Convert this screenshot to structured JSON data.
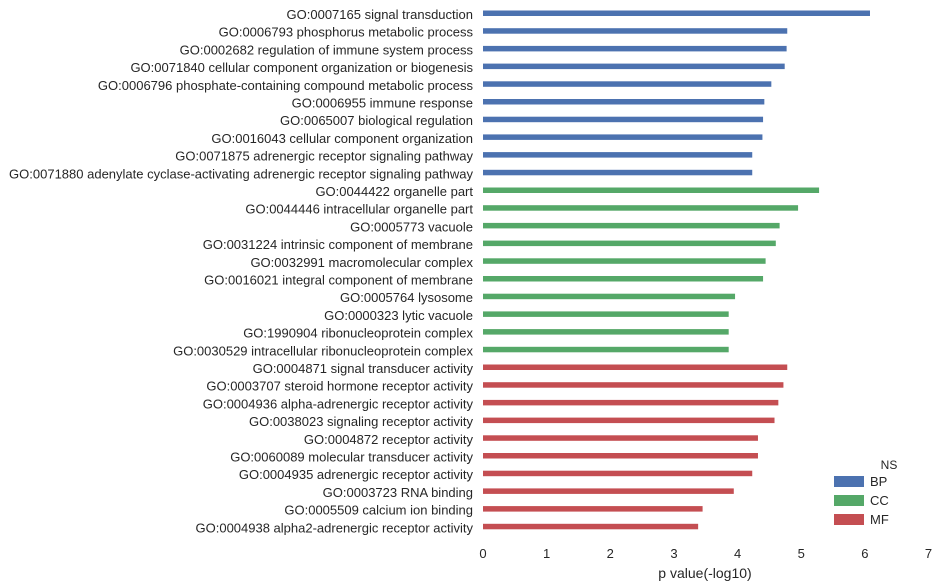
{
  "chart_data": {
    "type": "bar",
    "orientation": "horizontal",
    "grid": false,
    "legend_placement": "bottom-right",
    "xlabel": "p value(-log10)",
    "xlim": [
      0,
      7
    ],
    "xticks": [
      "0",
      "1",
      "2",
      "3",
      "4",
      "5",
      "6",
      "7"
    ],
    "legend": {
      "title": "NS",
      "entries": [
        {
          "name": "BP",
          "color": "#4c72b0"
        },
        {
          "name": "CC",
          "color": "#55a868"
        },
        {
          "name": "MF",
          "color": "#c44e52"
        }
      ]
    },
    "bars": [
      {
        "label": "GO:0007165 signal transduction",
        "value": 6.08,
        "group": "BP"
      },
      {
        "label": "GO:0006793 phosphorus metabolic process",
        "value": 4.78,
        "group": "BP"
      },
      {
        "label": "GO:0002682 regulation of immune system process",
        "value": 4.77,
        "group": "BP"
      },
      {
        "label": "GO:0071840 cellular component organization or biogenesis",
        "value": 4.74,
        "group": "BP"
      },
      {
        "label": "GO:0006796 phosphate-containing compound metabolic process",
        "value": 4.53,
        "group": "BP"
      },
      {
        "label": "GO:0006955 immune response",
        "value": 4.42,
        "group": "BP"
      },
      {
        "label": "GO:0065007 biological regulation",
        "value": 4.4,
        "group": "BP"
      },
      {
        "label": "GO:0016043 cellular component organization",
        "value": 4.39,
        "group": "BP"
      },
      {
        "label": "GO:0071875 adrenergic receptor signaling pathway",
        "value": 4.23,
        "group": "BP"
      },
      {
        "label": "GO:0071880 adenylate cyclase-activating adrenergic receptor signaling pathway",
        "value": 4.23,
        "group": "BP"
      },
      {
        "label": "GO:0044422 organelle part",
        "value": 5.28,
        "group": "CC"
      },
      {
        "label": "GO:0044446 intracellular organelle part",
        "value": 4.95,
        "group": "CC"
      },
      {
        "label": "GO:0005773 vacuole",
        "value": 4.66,
        "group": "CC"
      },
      {
        "label": "GO:0031224 intrinsic component of membrane",
        "value": 4.6,
        "group": "CC"
      },
      {
        "label": "GO:0032991 macromolecular complex",
        "value": 4.44,
        "group": "CC"
      },
      {
        "label": "GO:0016021 integral component of membrane",
        "value": 4.4,
        "group": "CC"
      },
      {
        "label": "GO:0005764 lysosome",
        "value": 3.96,
        "group": "CC"
      },
      {
        "label": "GO:0000323 lytic vacuole",
        "value": 3.86,
        "group": "CC"
      },
      {
        "label": "GO:1990904 ribonucleoprotein complex",
        "value": 3.86,
        "group": "CC"
      },
      {
        "label": "GO:0030529 intracellular ribonucleoprotein complex",
        "value": 3.86,
        "group": "CC"
      },
      {
        "label": "GO:0004871 signal transducer activity",
        "value": 4.78,
        "group": "MF"
      },
      {
        "label": "GO:0003707 steroid hormone receptor activity",
        "value": 4.72,
        "group": "MF"
      },
      {
        "label": "GO:0004936 alpha-adrenergic receptor activity",
        "value": 4.64,
        "group": "MF"
      },
      {
        "label": "GO:0038023 signaling receptor activity",
        "value": 4.58,
        "group": "MF"
      },
      {
        "label": "GO:0004872 receptor activity",
        "value": 4.32,
        "group": "MF"
      },
      {
        "label": "GO:0060089 molecular transducer activity",
        "value": 4.32,
        "group": "MF"
      },
      {
        "label": "GO:0004935 adrenergic receptor activity",
        "value": 4.23,
        "group": "MF"
      },
      {
        "label": "GO:0003723 RNA binding",
        "value": 3.94,
        "group": "MF"
      },
      {
        "label": "GO:0005509 calcium ion binding",
        "value": 3.45,
        "group": "MF"
      },
      {
        "label": "GO:0004938 alpha2-adrenergic receptor activity",
        "value": 3.38,
        "group": "MF"
      }
    ]
  }
}
